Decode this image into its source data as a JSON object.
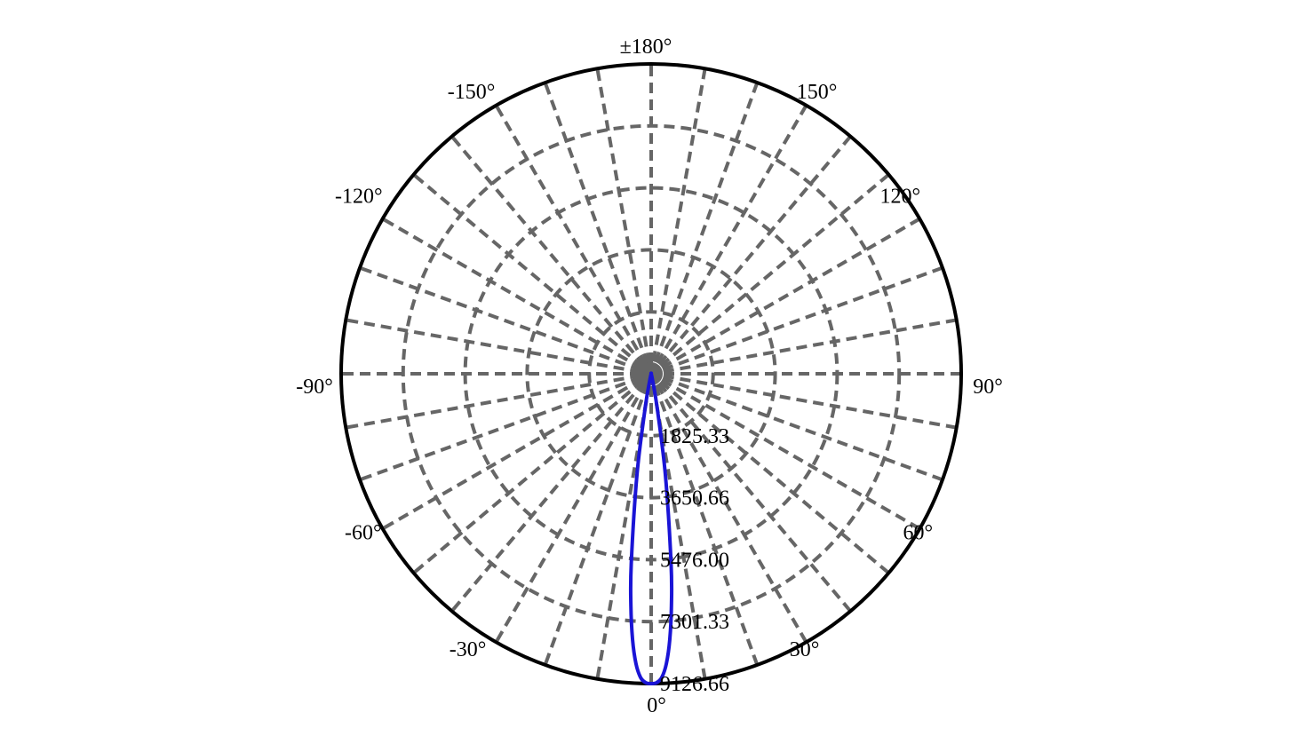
{
  "chart_data": {
    "type": "polar",
    "title": "",
    "angle_unit": "degrees",
    "zero_direction": "bottom",
    "angle_ticks": [
      {
        "angle": 0,
        "label": "0°"
      },
      {
        "angle": 30,
        "label": "30°"
      },
      {
        "angle": 60,
        "label": "60°"
      },
      {
        "angle": 90,
        "label": "90°"
      },
      {
        "angle": 120,
        "label": "120°"
      },
      {
        "angle": 150,
        "label": "150°"
      },
      {
        "angle": 180,
        "label": "±180°"
      },
      {
        "angle": -150,
        "label": "-150°"
      },
      {
        "angle": -120,
        "label": "-120°"
      },
      {
        "angle": -90,
        "label": "-90°"
      },
      {
        "angle": -60,
        "label": "-60°"
      },
      {
        "angle": -30,
        "label": "-30°"
      }
    ],
    "radial_ticks": [
      {
        "value": 1825.33,
        "label": "1825.33"
      },
      {
        "value": 3650.66,
        "label": "3650.66"
      },
      {
        "value": 5476.0,
        "label": "5476.00"
      },
      {
        "value": 7301.33,
        "label": "7301.33"
      },
      {
        "value": 9126.66,
        "label": "9126.66"
      }
    ],
    "rmax": 9126.66,
    "grid": true,
    "spoke_step": 10,
    "colors": {
      "series": "#1a14d6",
      "grid": "#666666",
      "frame": "#000000",
      "center": "#666666"
    },
    "series": [
      {
        "angles": [
          -90,
          -60,
          -30,
          -20,
          -15,
          -12,
          -10,
          -8,
          -6,
          -5,
          -4,
          -3,
          -2,
          -1,
          0,
          1,
          2,
          3,
          4,
          5,
          6,
          8,
          10,
          12,
          15,
          20,
          30,
          60,
          90
        ],
        "values": [
          0,
          0,
          0,
          0,
          0,
          200,
          1000,
          3000,
          5600,
          6850,
          7850,
          8550,
          8950,
          9100,
          9126.66,
          9100,
          8950,
          8550,
          7850,
          6850,
          5600,
          3000,
          1000,
          200,
          0,
          0,
          0,
          0,
          0
        ]
      }
    ]
  }
}
